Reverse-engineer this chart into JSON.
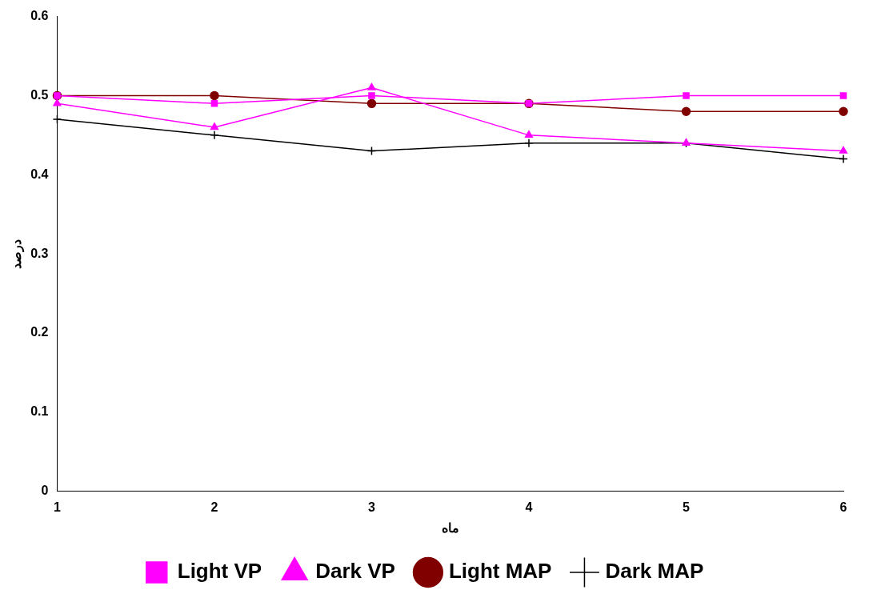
{
  "chart_data": {
    "type": "line",
    "xlabel": "ماه",
    "ylabel": "درصد",
    "categories": [
      "1",
      "2",
      "3",
      "4",
      "5",
      "6"
    ],
    "series": [
      {
        "name": "Light VP",
        "color": "#ff00ff",
        "marker": "square",
        "values": [
          0.5,
          0.49,
          0.5,
          0.49,
          0.5,
          0.5
        ]
      },
      {
        "name": "Dark VP",
        "color": "#ff00ff",
        "marker": "triangle",
        "values": [
          0.49,
          0.46,
          0.51,
          0.45,
          0.44,
          0.43
        ]
      },
      {
        "name": "Light MAP",
        "color": "#800000",
        "marker": "circle",
        "values": [
          0.5,
          0.5,
          0.49,
          0.49,
          0.48,
          0.48
        ]
      },
      {
        "name": "Dark MAP",
        "color": "#000000",
        "marker": "cross",
        "values": [
          0.47,
          0.45,
          0.43,
          0.44,
          0.44,
          0.42
        ]
      }
    ],
    "ylim": [
      0,
      0.6
    ],
    "yticks": [
      0,
      0.1,
      0.2,
      0.3,
      0.4,
      0.5,
      0.6
    ],
    "grid": false,
    "legend": "bottom"
  }
}
